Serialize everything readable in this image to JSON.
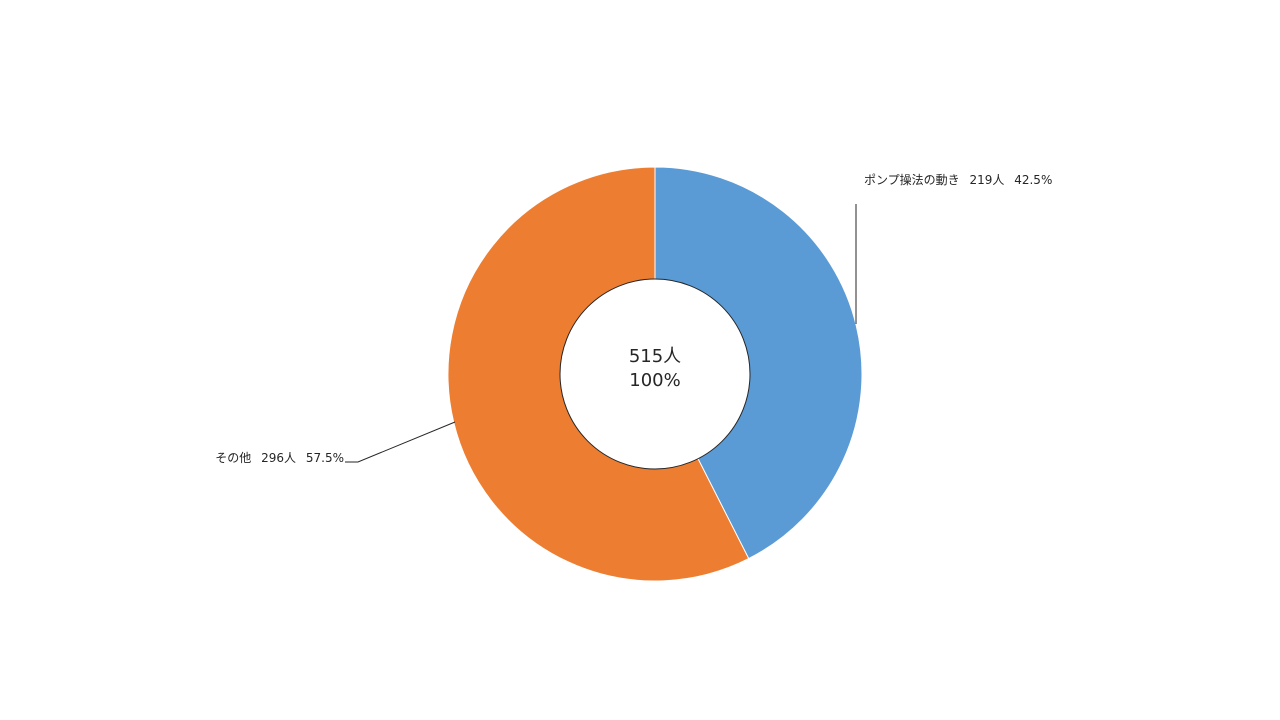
{
  "chart_data": {
    "type": "pie",
    "subtype": "donut",
    "total": {
      "count_label": "515人",
      "percent_label": "100%",
      "value": 515
    },
    "slices": [
      {
        "category": "ポンプ操法の動き",
        "value": 219,
        "value_label": "219人",
        "percent_label": "42.5%",
        "color": "#5B9BD5"
      },
      {
        "category": "その他",
        "value": 296,
        "value_label": "296人",
        "percent_label": "57.5%",
        "color": "#ED7D31"
      }
    ],
    "start": "top",
    "direction": "clockwise",
    "legend": "none"
  }
}
